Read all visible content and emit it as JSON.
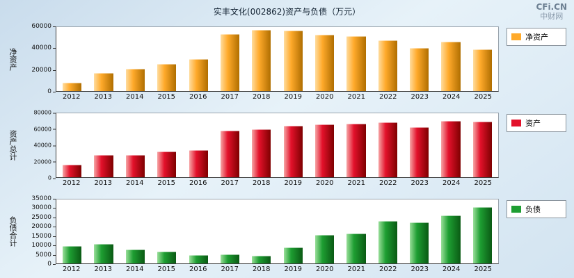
{
  "title": "实丰文化(002862)资产与负债（万元）",
  "watermark": {
    "line1": "CFi.CN",
    "line2": "中财网"
  },
  "chart_data": [
    {
      "type": "bar",
      "ylabel": "净资产",
      "legend": "净资产",
      "color": "#FFAA2B",
      "color_light": "#FFDC9E",
      "color_dark": "#B06E00",
      "categories": [
        "2012",
        "2013",
        "2014",
        "2015",
        "2016",
        "2017",
        "2018",
        "2019",
        "2020",
        "2021",
        "2022",
        "2023",
        "2024",
        "2025"
      ],
      "values": [
        7600,
        17200,
        20800,
        25500,
        29700,
        53800,
        57200,
        57000,
        53000,
        51700,
        47600,
        40700,
        46200,
        39300
      ],
      "ylim": [
        0,
        60000
      ],
      "yticks": [
        0,
        20000,
        40000,
        60000
      ],
      "grid": false,
      "legend_position": "right"
    },
    {
      "type": "bar",
      "ylabel": "资产总计",
      "legend": "资产",
      "color": "#E3112B",
      "color_light": "#F7A6A6",
      "color_dark": "#7E0000",
      "categories": [
        "2012",
        "2013",
        "2014",
        "2015",
        "2016",
        "2017",
        "2018",
        "2019",
        "2020",
        "2021",
        "2022",
        "2023",
        "2024",
        "2025"
      ],
      "values": [
        16000,
        27500,
        28000,
        32000,
        33800,
        58700,
        60400,
        64000,
        65800,
        66700,
        68400,
        62200,
        70200,
        69300
      ],
      "ylim": [
        0,
        80000
      ],
      "yticks": [
        0,
        20000,
        40000,
        60000,
        80000
      ],
      "grid": false,
      "legend_position": "right"
    },
    {
      "type": "bar",
      "ylabel": "负债合计",
      "legend": "负债",
      "color": "#1E9E32",
      "color_light": "#9ADF9A",
      "color_dark": "#0A5A14",
      "categories": [
        "2012",
        "2013",
        "2014",
        "2015",
        "2016",
        "2017",
        "2018",
        "2019",
        "2020",
        "2021",
        "2022",
        "2023",
        "2024",
        "2025"
      ],
      "values": [
        9500,
        10500,
        7700,
        6400,
        4500,
        5000,
        4100,
        8600,
        15500,
        16400,
        23200,
        22300,
        26400,
        31000
      ],
      "ylim": [
        0,
        35000
      ],
      "yticks": [
        0,
        5000,
        10000,
        15000,
        20000,
        25000,
        30000,
        35000
      ],
      "grid": false,
      "legend_position": "right"
    }
  ]
}
